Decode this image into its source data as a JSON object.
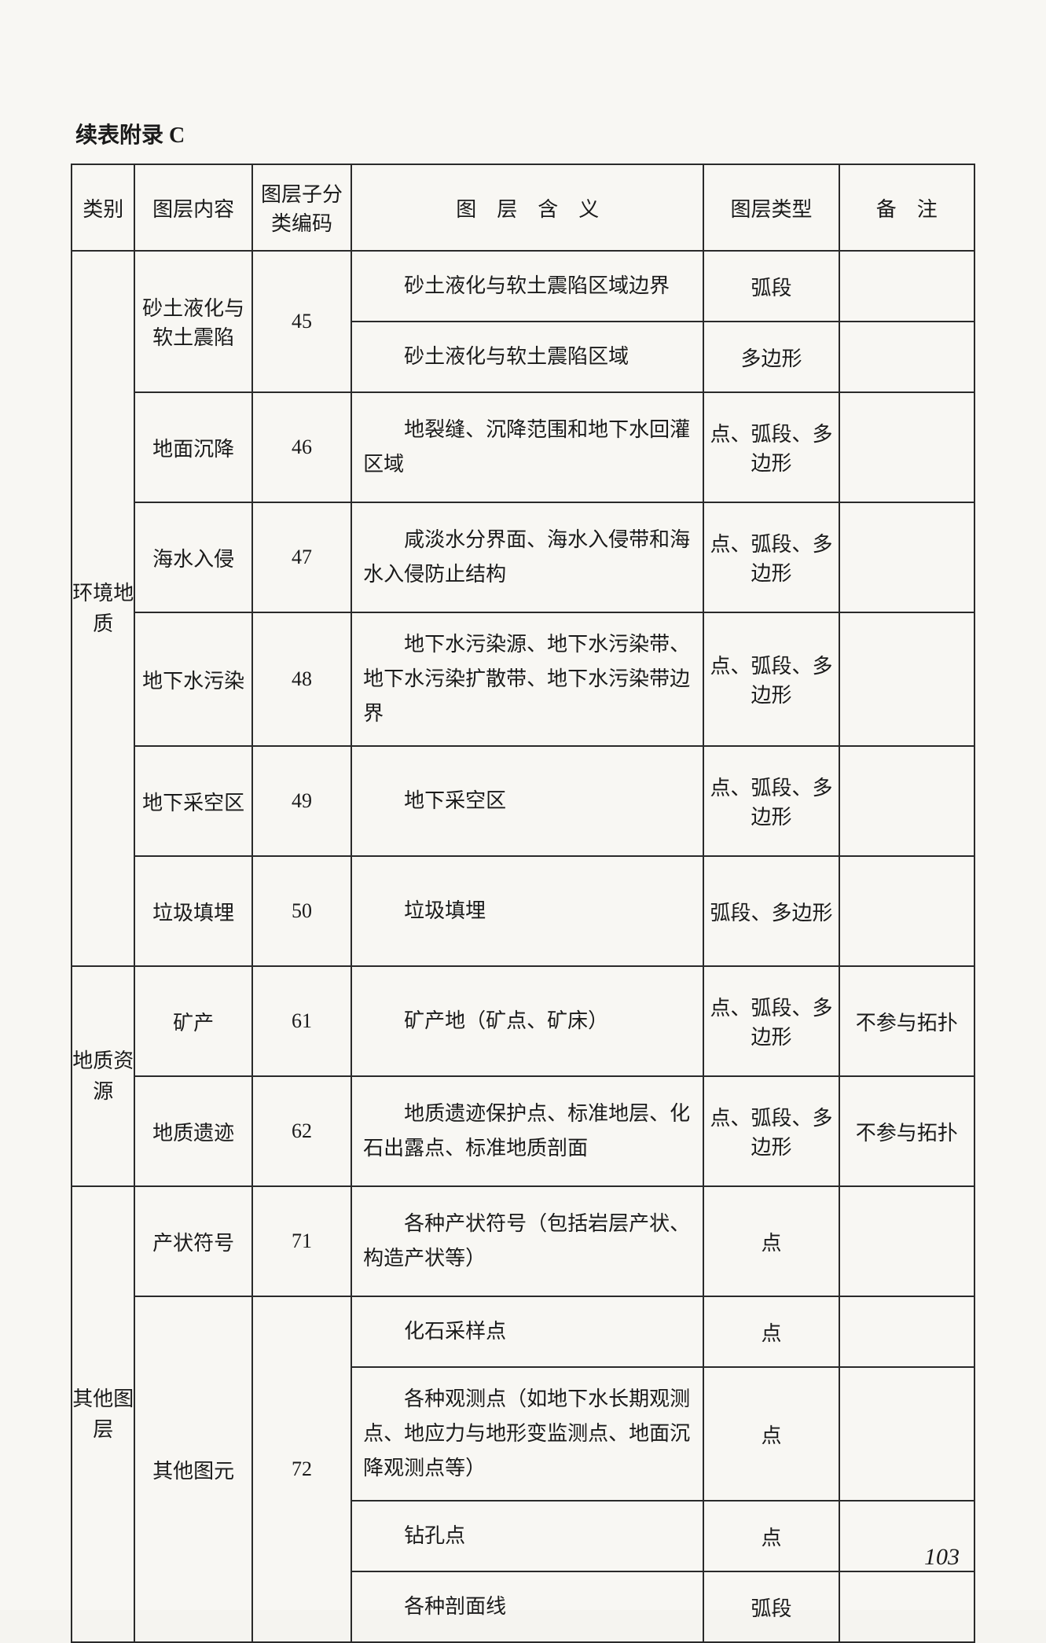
{
  "title": "续表附录 C",
  "page_number": "103",
  "header": {
    "c1": "类别",
    "c2": "图层内容",
    "c3": "图层子分类编码",
    "c4": "图　层　含　义",
    "c5": "图层类型",
    "c6": "备　注"
  },
  "groups": [
    {
      "category": "环境地质",
      "items": [
        {
          "content": "砂土液化与软土震陷",
          "code": "45",
          "sub": [
            {
              "meaning": "砂土液化与软土震陷区域边界",
              "type": "弧段",
              "note": ""
            },
            {
              "meaning": "砂土液化与软土震陷区域",
              "type": "多边形",
              "note": ""
            }
          ]
        },
        {
          "content": "地面沉降",
          "code": "46",
          "sub": [
            {
              "meaning": "地裂缝、沉降范围和地下水回灌区域",
              "type": "点、弧段、多边形",
              "note": ""
            }
          ]
        },
        {
          "content": "海水入侵",
          "code": "47",
          "sub": [
            {
              "meaning": "咸淡水分界面、海水入侵带和海水入侵防止结构",
              "type": "点、弧段、多边形",
              "note": ""
            }
          ]
        },
        {
          "content": "地下水污染",
          "code": "48",
          "sub": [
            {
              "meaning": "地下水污染源、地下水污染带、地下水污染扩散带、地下水污染带边界",
              "type": "点、弧段、多边形",
              "note": ""
            }
          ]
        },
        {
          "content": "地下采空区",
          "code": "49",
          "sub": [
            {
              "meaning": "地下采空区",
              "type": "点、弧段、多边形",
              "note": ""
            }
          ]
        },
        {
          "content": "垃圾填埋",
          "code": "50",
          "sub": [
            {
              "meaning": "垃圾填埋",
              "type": "弧段、多边形",
              "note": ""
            }
          ]
        }
      ]
    },
    {
      "category": "地质资源",
      "items": [
        {
          "content": "矿产",
          "code": "61",
          "sub": [
            {
              "meaning": "矿产地（矿点、矿床）",
              "type": "点、弧段、多边形",
              "note": "不参与拓扑"
            }
          ]
        },
        {
          "content": "地质遗迹",
          "code": "62",
          "sub": [
            {
              "meaning": "地质遗迹保护点、标准地层、化石出露点、标准地质剖面",
              "type": "点、弧段、多边形",
              "note": "不参与拓扑"
            }
          ]
        }
      ]
    },
    {
      "category": "其他图层",
      "items": [
        {
          "content": "产状符号",
          "code": "71",
          "sub": [
            {
              "meaning": "各种产状符号（包括岩层产状、构造产状等）",
              "type": "点",
              "note": ""
            }
          ]
        },
        {
          "content": "其他图元",
          "code": "72",
          "sub": [
            {
              "meaning": "化石采样点",
              "type": "点",
              "note": ""
            },
            {
              "meaning": "各种观测点（如地下水长期观测点、地应力与地形变监测点、地面沉降观测点等）",
              "type": "点",
              "note": ""
            },
            {
              "meaning": "钻孔点",
              "type": "点",
              "note": ""
            },
            {
              "meaning": "各种剖面线",
              "type": "弧段",
              "note": ""
            }
          ]
        }
      ]
    }
  ]
}
